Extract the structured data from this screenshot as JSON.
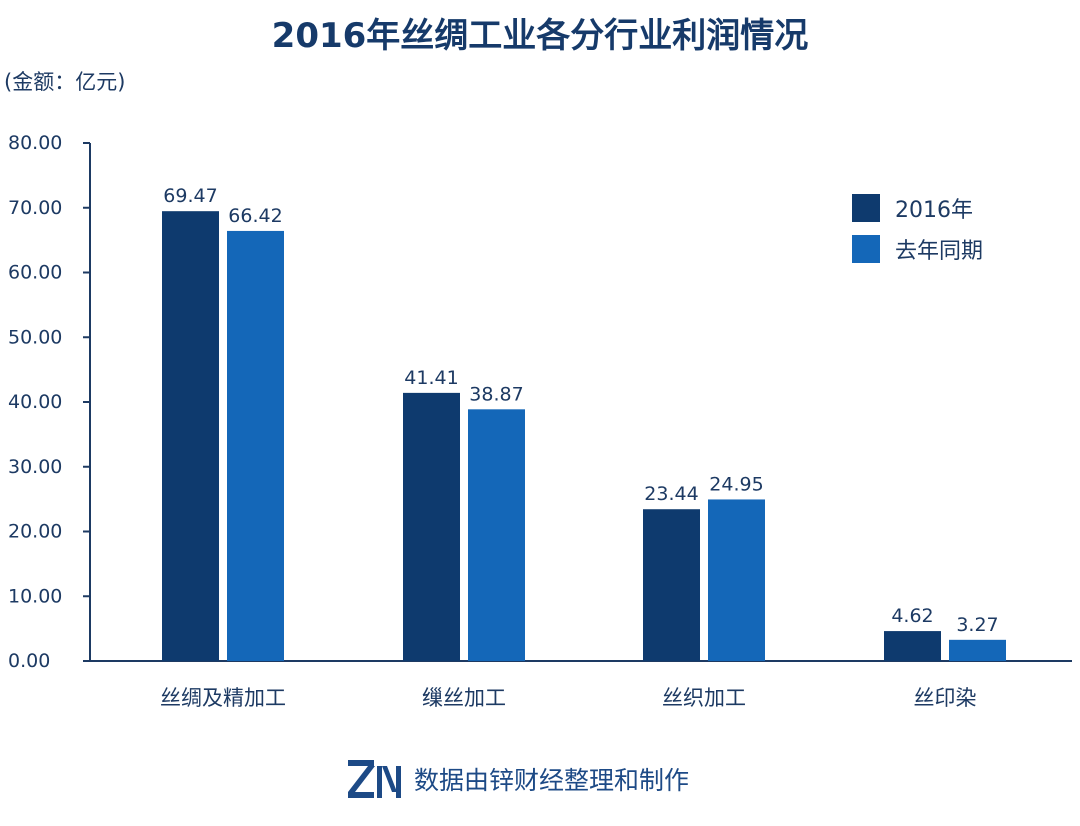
{
  "chart_data": {
    "type": "bar",
    "title": "2016年丝绸工业各分行业利润情况",
    "unit_label": "(金额：亿元)",
    "categories": [
      "丝绸及精加工",
      "缫丝加工",
      "丝织加工",
      "丝印染"
    ],
    "series": [
      {
        "name": "2016年",
        "color": "#0e3a6e",
        "values": [
          69.47,
          41.41,
          23.44,
          4.62
        ],
        "labels": [
          "69.47",
          "41.41",
          "23.44",
          "4.62"
        ]
      },
      {
        "name": "去年同期",
        "color": "#1467b8",
        "values": [
          66.42,
          38.87,
          24.95,
          3.27
        ],
        "labels": [
          "66.42",
          "38.87",
          "24.95",
          "3.27"
        ]
      }
    ],
    "ylim": [
      0,
      80
    ],
    "yticks": [
      "0.00",
      "10.00",
      "20.00",
      "30.00",
      "40.00",
      "50.00",
      "60.00",
      "70.00",
      "80.00"
    ],
    "legend_position": "top-right",
    "grid": false
  },
  "footer": {
    "logo": "ZN",
    "text": "数据由锌财经整理和制作"
  }
}
